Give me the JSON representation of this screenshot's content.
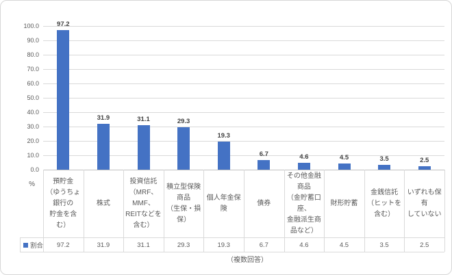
{
  "chart_data": {
    "type": "bar",
    "title": "",
    "xlabel": "",
    "ylabel": "%",
    "ylim": [
      0,
      100
    ],
    "ytick_interval": 10,
    "ytick_labels": [
      "100.0",
      "90.0",
      "80.0",
      "70.0",
      "60.0",
      "50.0",
      "40.0",
      "30.0",
      "20.0",
      "10.0",
      "0.0"
    ],
    "grid": true,
    "data_labels": true,
    "data_table_shown": true,
    "legend_position": "data-table-left",
    "legend_label": "割合",
    "note": "（複数回答）",
    "categories": [
      "預貯金（ゆうちょ銀行の貯金を含む）",
      "株式",
      "投資信託（MRF、MMF、REITなどを含む）",
      "積立型保険商品（生保・損保）",
      "個人年金保険",
      "債券",
      "その他金融商品（金貯蓄口座、金融派生商品など）",
      "財形貯蓄",
      "金銭信託（ヒットを含む）",
      "いずれも保有していない"
    ],
    "category_display_lines": [
      [
        "預貯金",
        "（ゆうちょ",
        "銀行の",
        "貯金を含",
        "む）"
      ],
      [
        "株式"
      ],
      [
        "投資信託",
        "（MRF、",
        "MMF、",
        "REITなどを",
        "含む）"
      ],
      [
        "積立型保険",
        "商品",
        "（生保・損",
        "保）"
      ],
      [
        "個人年金保",
        "険"
      ],
      [
        "債券"
      ],
      [
        "その他金融",
        "商品",
        "（金貯蓄口",
        "座、",
        "金融派生商",
        "品など）"
      ],
      [
        "財形貯蓄"
      ],
      [
        "金銭信託",
        "（ヒットを",
        "含む）"
      ],
      [
        "いずれも保",
        "有",
        "していない"
      ]
    ],
    "series": [
      {
        "name": "割合",
        "values": [
          97.2,
          31.9,
          31.1,
          29.3,
          19.3,
          6.7,
          4.6,
          4.5,
          3.5,
          2.5
        ]
      }
    ]
  },
  "colors": {
    "bar": "#4472c4",
    "gridline": "#d9d9d9",
    "axis_line": "#bfbfbf",
    "axis_text": "#595959",
    "value_text": "#404040",
    "frame_border": "#d6d6d6"
  }
}
